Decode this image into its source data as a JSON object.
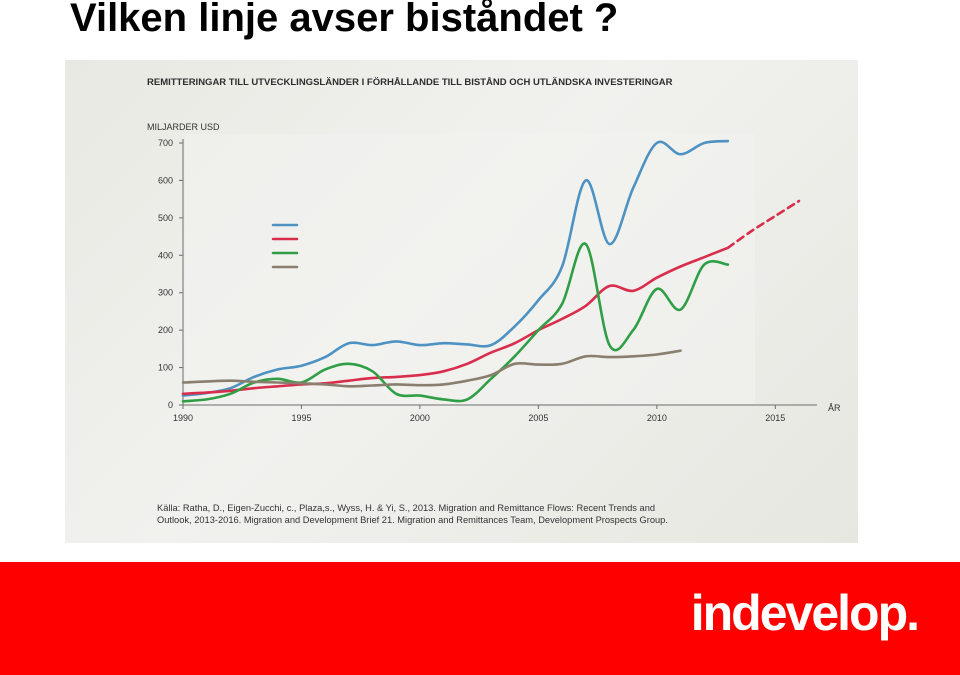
{
  "slide": {
    "title": "Vilken linje avser biståndet ?"
  },
  "footer": {
    "logo_text": "indevelop.",
    "background_color": "#ff0000"
  },
  "chart_data": {
    "type": "line",
    "title": "REMITTERINGAR TILL UTVECKLINGSLÄNDER I FÖRHÅLLANDE TILL BISTÅND OCH UTLÄNDSKA INVESTERINGAR",
    "ylabel": "MILJARDER USD",
    "xlabel": "ÅR",
    "xlim": [
      1990,
      2016
    ],
    "ylim": [
      0,
      700
    ],
    "x_ticks": [
      1990,
      1995,
      2000,
      2005,
      2010,
      2015
    ],
    "y_ticks": [
      0,
      100,
      200,
      300,
      400,
      500,
      600,
      700
    ],
    "legend_placement": "top-left",
    "legend_labels_visible": false,
    "source": [
      "Källa: Ratha, D., Eigen-Zucchi, c., Plaza,s., Wyss, H. & Yi, S., 2013. Migration and Remittance Flows: Recent Trends and",
      "Outlook, 2013-2016. Migration and Development Brief 21. Migration and Remittances Team, Development Prospects Group."
    ],
    "series": [
      {
        "color": "#4d92c2",
        "x": [
          1990,
          1991,
          1992,
          1993,
          1994,
          1995,
          1996,
          1997,
          1998,
          1999,
          2000,
          2001,
          2002,
          2003,
          2004,
          2005,
          2006,
          2007,
          2008,
          2009,
          2010,
          2011,
          2012,
          2013
        ],
        "values": [
          25,
          32,
          45,
          75,
          95,
          105,
          128,
          165,
          160,
          170,
          160,
          165,
          162,
          160,
          210,
          280,
          370,
          600,
          430,
          580,
          700,
          670,
          700,
          705
        ]
      },
      {
        "color": "#d92d4c",
        "x": [
          1990,
          1991,
          1992,
          1993,
          1994,
          1995,
          1996,
          1997,
          1998,
          1999,
          2000,
          2001,
          2002,
          2003,
          2004,
          2005,
          2006,
          2007,
          2008,
          2009,
          2010,
          2011,
          2012,
          2013
        ],
        "values": [
          30,
          33,
          38,
          45,
          50,
          55,
          58,
          65,
          72,
          75,
          80,
          90,
          110,
          140,
          165,
          200,
          230,
          265,
          318,
          305,
          340,
          370,
          395,
          420
        ]
      },
      {
        "color": "#d92d4c",
        "dashed": true,
        "x": [
          2013,
          2014,
          2015,
          2016
        ],
        "values": [
          420,
          465,
          505,
          545
        ]
      },
      {
        "color": "#2f9e45",
        "x": [
          1990,
          1991,
          1992,
          1993,
          1994,
          1995,
          1996,
          1997,
          1998,
          1999,
          2000,
          2001,
          2002,
          2003,
          2004,
          2005,
          2006,
          2007,
          2008,
          2009,
          2010,
          2011,
          2012,
          2013
        ],
        "values": [
          10,
          15,
          30,
          60,
          70,
          60,
          95,
          110,
          90,
          30,
          25,
          15,
          15,
          70,
          130,
          200,
          270,
          430,
          160,
          200,
          310,
          255,
          375,
          375
        ]
      },
      {
        "color": "#8a7f6e",
        "x": [
          1990,
          1991,
          1992,
          1993,
          1994,
          1995,
          1996,
          1997,
          1998,
          1999,
          2000,
          2001,
          2002,
          2003,
          2004,
          2005,
          2006,
          2007,
          2008,
          2009,
          2010,
          2011
        ],
        "values": [
          60,
          63,
          65,
          62,
          60,
          58,
          55,
          50,
          52,
          55,
          53,
          55,
          65,
          80,
          110,
          108,
          110,
          130,
          128,
          130,
          135,
          145
        ]
      }
    ]
  }
}
